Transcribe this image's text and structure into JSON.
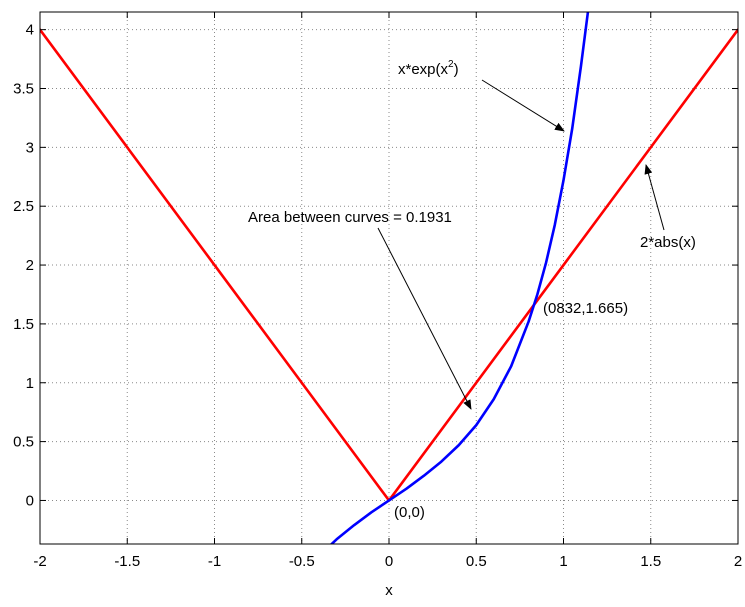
{
  "chart_data": {
    "type": "line",
    "title": "",
    "xlabel": "x",
    "ylabel": "",
    "xlim": [
      -2,
      2
    ],
    "ylim": [
      -0.37,
      4.15
    ],
    "grid": true,
    "xticks": [
      "-2",
      "-1.5",
      "-1",
      "-0.5",
      "0",
      "0.5",
      "1",
      "1.5",
      "2"
    ],
    "yticks": [
      "0",
      "0.5",
      "1",
      "1.5",
      "2",
      "2.5",
      "3",
      "3.5",
      "4"
    ],
    "series": [
      {
        "name": "",
        "color": "#ff0000",
        "x": [
          -2,
          -1.5,
          -1,
          -0.5,
          0,
          0.5,
          1,
          1.5,
          2
        ],
        "y": [
          4,
          3,
          2,
          1,
          0,
          1,
          2,
          3,
          4
        ]
      },
      {
        "name": "",
        "color": "#0000ff",
        "x": [
          -0.35,
          -0.3,
          -0.2,
          -0.1,
          0,
          0.1,
          0.2,
          0.3,
          0.4,
          0.5,
          0.6,
          0.7,
          0.8,
          0.85,
          0.9,
          0.95,
          1.0,
          1.05,
          1.1,
          1.14
        ],
        "y": [
          -0.4,
          -0.33,
          -0.21,
          -0.1,
          0.0,
          0.1,
          0.21,
          0.33,
          0.47,
          0.64,
          0.86,
          1.14,
          1.52,
          1.75,
          2.02,
          2.34,
          2.72,
          3.16,
          3.69,
          4.15
        ]
      }
    ],
    "annotations": [
      {
        "text": "x*exp(x",
        "sup": "2",
        "suffix": ")",
        "arrow_to": [
          1.0,
          2.93
        ]
      },
      {
        "text": "2*abs(x)",
        "arrow_to": [
          1.45,
          2.9
        ]
      },
      {
        "text": "Area between curves = 0.1931",
        "arrow_to": [
          0.45,
          0.85
        ]
      },
      {
        "text": "(0832,1.665)"
      },
      {
        "text": "(0,0)"
      }
    ]
  }
}
